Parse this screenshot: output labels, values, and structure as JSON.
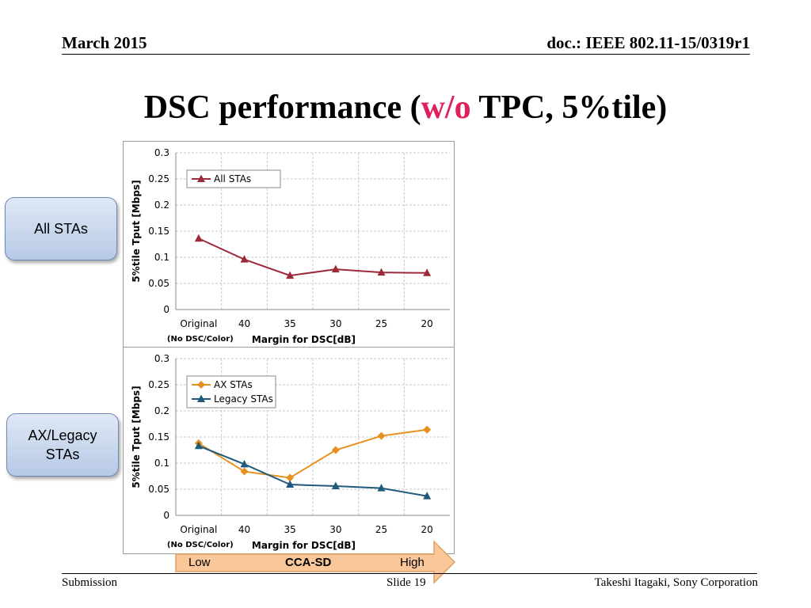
{
  "header": {
    "date": "March 2015",
    "doc": "doc.: IEEE 802.11-15/0319r1"
  },
  "title": {
    "before": "DSC performance (",
    "accent": "w/o",
    "after": " TPC, 5%tile)"
  },
  "side_labels": {
    "top": "All STAs",
    "bottom_line1": "AX/Legacy",
    "bottom_line2": "STAs"
  },
  "colors": {
    "all_stas": "#9c2b3a",
    "ax_stas": "#e8901e",
    "legacy_stas": "#1f5a7c",
    "title_accent": "#e0205a",
    "arrow_fill": "#f9c79a"
  },
  "chart_data": [
    {
      "type": "line",
      "categories": [
        "Original",
        "40",
        "35",
        "30",
        "25",
        "20"
      ],
      "category_note": "(No DSC/Color)",
      "series": [
        {
          "name": "All STAs",
          "values": [
            0.136,
            0.096,
            0.065,
            0.077,
            0.071,
            0.07
          ],
          "color": "#9c2b3a",
          "marker": "triangle"
        }
      ],
      "xlabel": "Margin for DSC[dB]",
      "ylabel": "5%tile Tput [Mbps]",
      "ylim": [
        0,
        0.3
      ],
      "yticks": [
        "0",
        "0.05",
        "0.1",
        "0.15",
        "0.2",
        "0.25",
        "0.3"
      ],
      "grid": true,
      "legend": "top-left"
    },
    {
      "type": "line",
      "categories": [
        "Original",
        "40",
        "35",
        "30",
        "25",
        "20"
      ],
      "category_note": "(No DSC/Color)",
      "series": [
        {
          "name": "AX STAs",
          "values": [
            0.138,
            0.084,
            0.072,
            0.125,
            0.152,
            0.164
          ],
          "color": "#e8901e",
          "marker": "diamond"
        },
        {
          "name": "Legacy STAs",
          "values": [
            0.133,
            0.098,
            0.059,
            0.056,
            0.052,
            0.037
          ],
          "color": "#1f5a7c",
          "marker": "triangle"
        }
      ],
      "xlabel": "Margin for DSC[dB]",
      "ylabel": "5%tile Tput [Mbps]",
      "ylim": [
        0,
        0.3
      ],
      "yticks": [
        "0",
        "0.05",
        "0.1",
        "0.15",
        "0.2",
        "0.25",
        "0.3"
      ],
      "grid": true,
      "legend": "top-left"
    }
  ],
  "cca_arrow": {
    "low": "Low",
    "label": "CCA-SD",
    "high": "High"
  },
  "footer": {
    "left": "Submission",
    "center": "Slide 19",
    "right": "Takeshi Itagaki, Sony Corporation"
  }
}
